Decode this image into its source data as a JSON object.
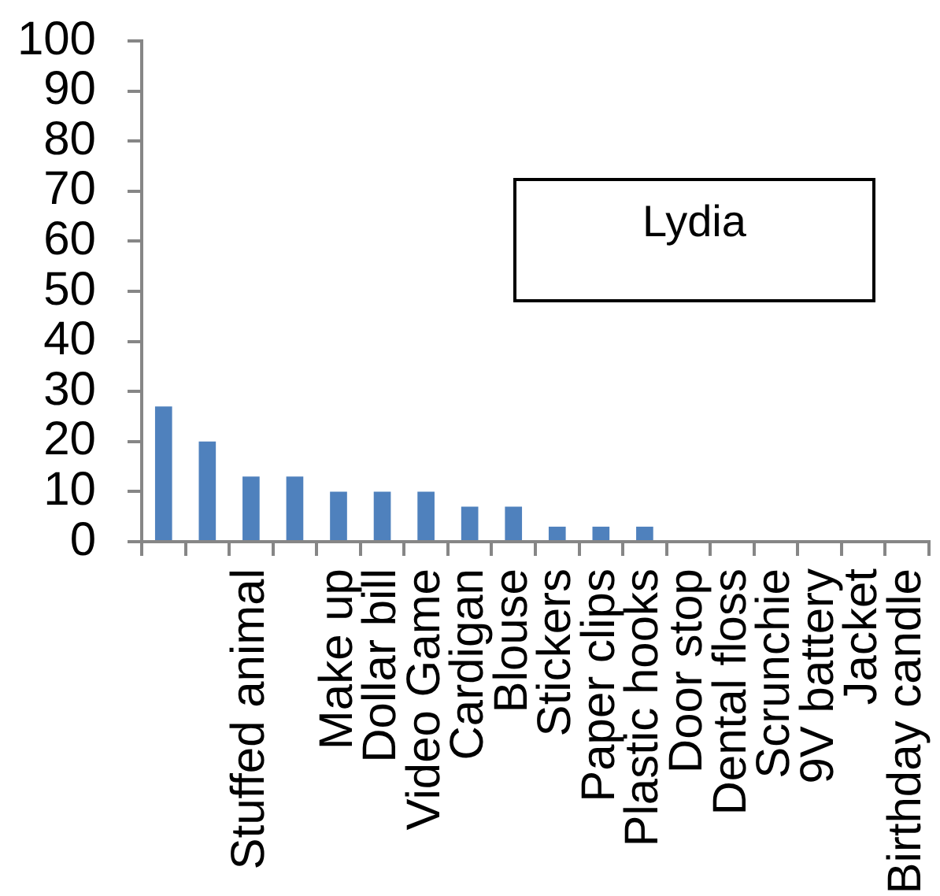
{
  "chart_data": {
    "type": "bar",
    "title": "Lydia",
    "categories": [
      null,
      null,
      "Stuffed animal",
      null,
      "Make up",
      "Dollar bill",
      "Video Game",
      "Cardigan",
      "Blouse",
      "Stickers",
      "Paper clips",
      "Plastic hooks",
      "Door stop",
      "Dental floss",
      "Scrunchie",
      "9V battery",
      "Jacket",
      "Birthday candle"
    ],
    "values": [
      27,
      20,
      13,
      13,
      10,
      10,
      10,
      7,
      7,
      3,
      3,
      3,
      0,
      0,
      0,
      0,
      0,
      0
    ],
    "color": "#4f81bd",
    "ylim": [
      0,
      100
    ],
    "yticks": [
      0,
      10,
      20,
      30,
      40,
      50,
      60,
      70,
      80,
      90,
      100
    ]
  }
}
